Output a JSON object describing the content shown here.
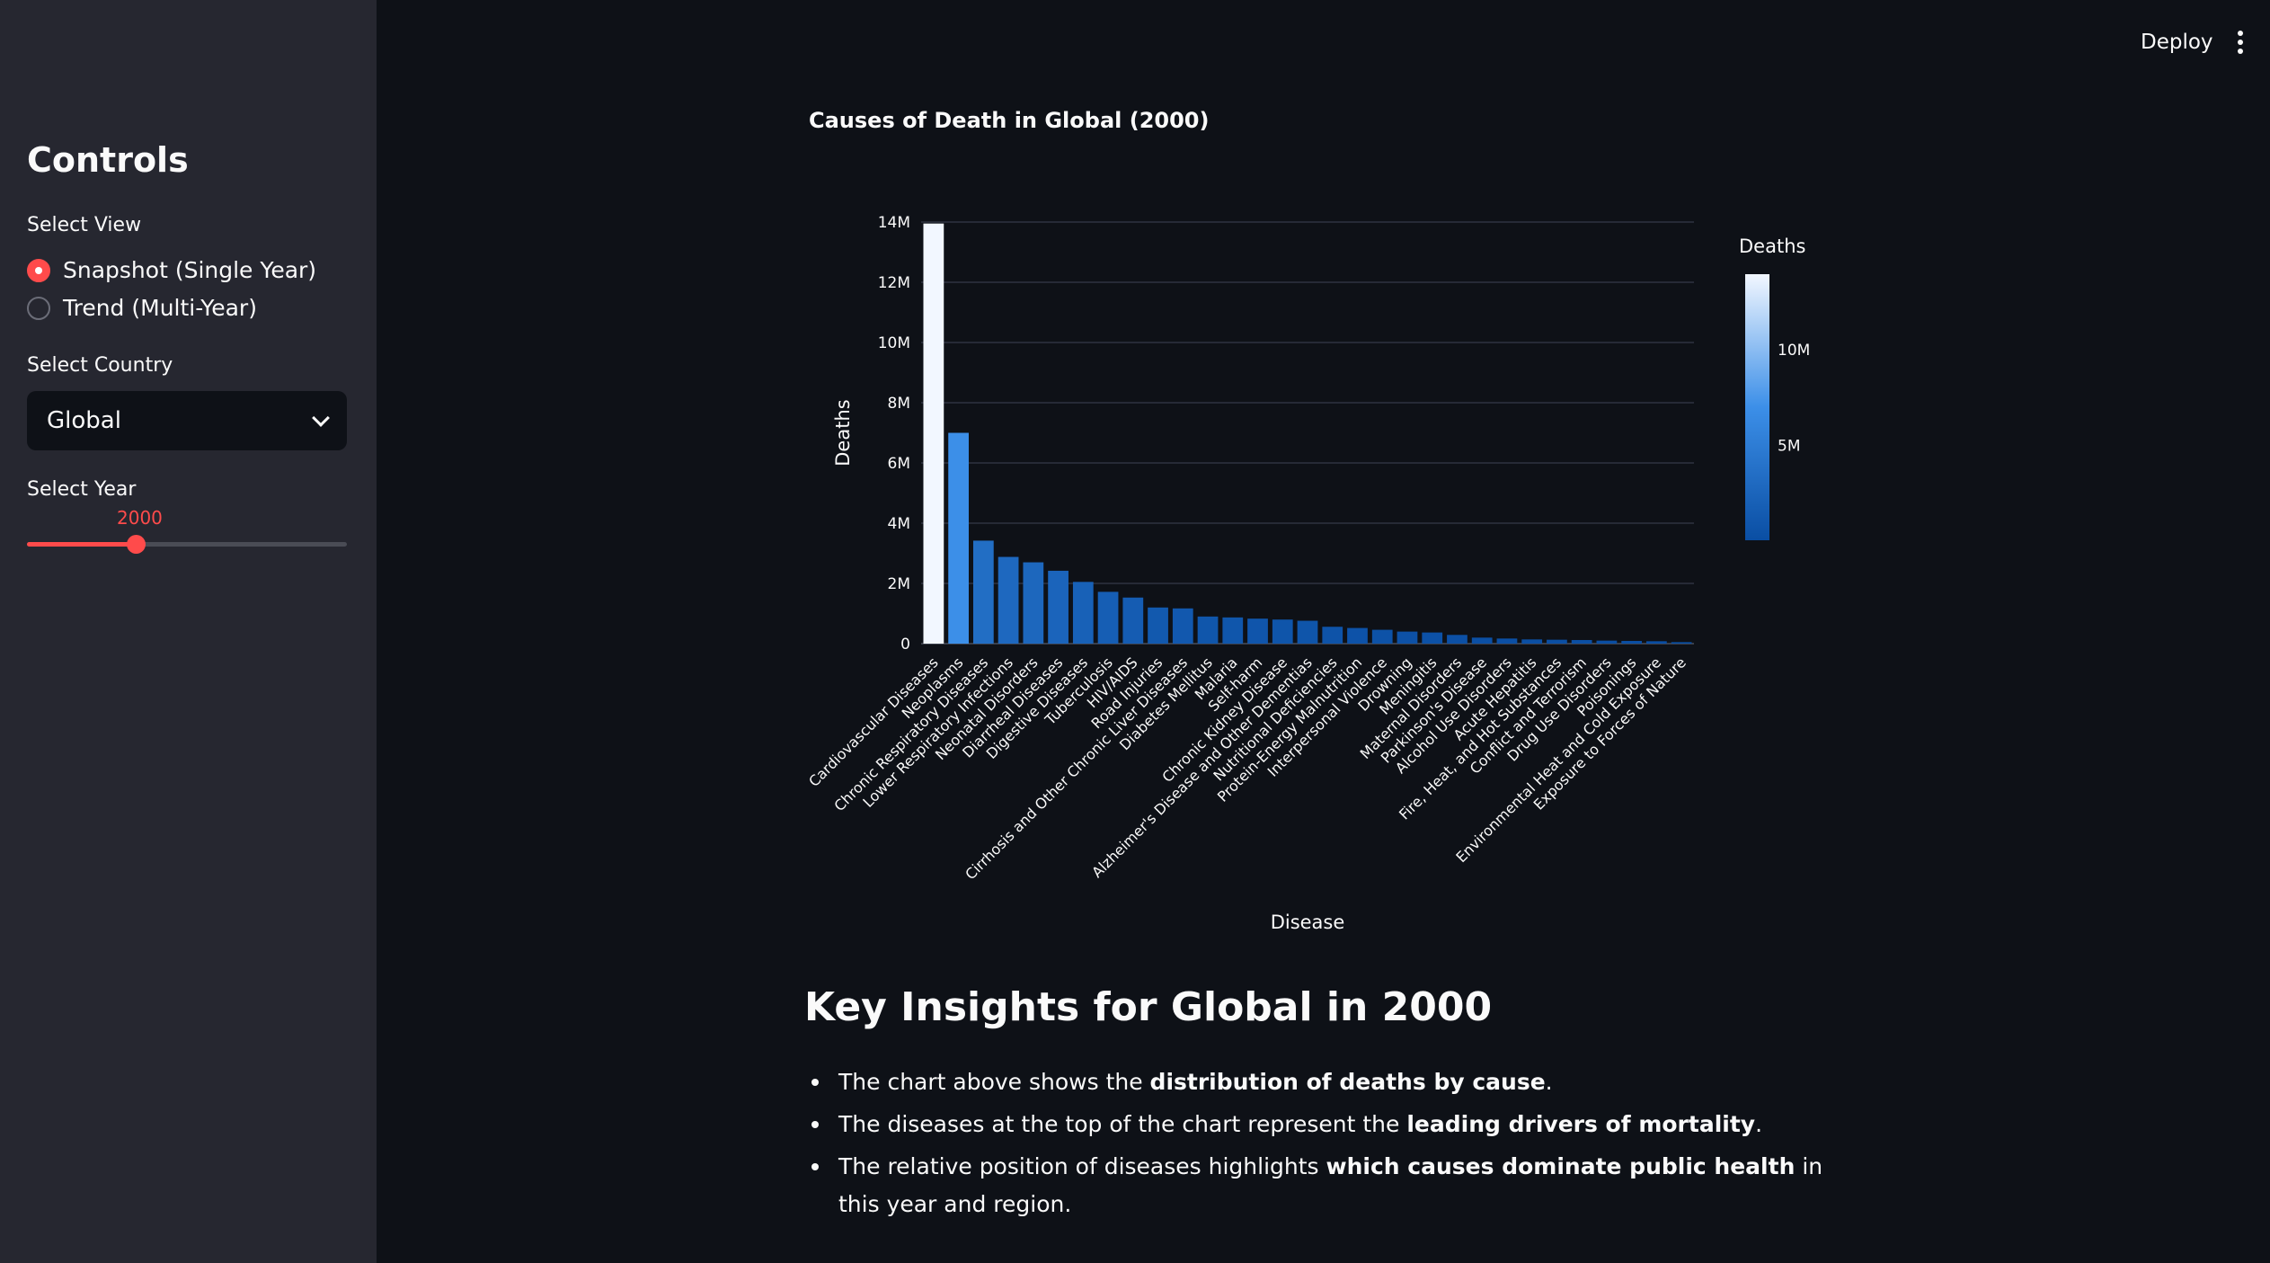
{
  "header": {
    "deploy_label": "Deploy"
  },
  "sidebar": {
    "title": "Controls",
    "view_label": "Select View",
    "view_options": [
      "Snapshot (Single Year)",
      "Trend (Multi-Year)"
    ],
    "view_selected": 0,
    "country_label": "Select Country",
    "country_value": "Global",
    "year_label": "Select Year",
    "year_value": "2000",
    "year_slider_fraction": 0.34,
    "accent_color": "#ff4b4b"
  },
  "chart_data": {
    "type": "bar",
    "title": "Causes of Death in Global (2000)",
    "xlabel": "Disease",
    "ylabel": "Deaths",
    "ylim": [
      0,
      14000000
    ],
    "yticks": [
      0,
      2000000,
      4000000,
      6000000,
      8000000,
      10000000,
      12000000,
      14000000
    ],
    "ytick_labels": [
      "0",
      "2M",
      "4M",
      "6M",
      "8M",
      "10M",
      "12M",
      "14M"
    ],
    "categories": [
      "Cardiovascular Diseases",
      "Neoplasms",
      "Chronic Respiratory Diseases",
      "Lower Respiratory Infections",
      "Neonatal Disorders",
      "Diarrheal Diseases",
      "Digestive Diseases",
      "Tuberculosis",
      "HIV/AIDS",
      "Road Injuries",
      "Cirrhosis and Other Chronic Liver Diseases",
      "Diabetes Mellitus",
      "Malaria",
      "Self-harm",
      "Chronic Kidney Disease",
      "Alzheimer's Disease and Other Dementias",
      "Nutritional Deficiencies",
      "Protein-Energy Malnutrition",
      "Interpersonal Violence",
      "Drowning",
      "Meningitis",
      "Maternal Disorders",
      "Parkinson's Disease",
      "Alcohol Use Disorders",
      "Acute Hepatitis",
      "Fire, Heat, and Hot Substances",
      "Conflict and Terrorism",
      "Drug Use Disorders",
      "Poisonings",
      "Environmental Heat and Cold Exposure",
      "Exposure to Forces of Nature"
    ],
    "values": [
      13950000,
      7000000,
      3420000,
      2880000,
      2700000,
      2420000,
      2050000,
      1720000,
      1530000,
      1200000,
      1170000,
      900000,
      870000,
      830000,
      800000,
      760000,
      560000,
      520000,
      460000,
      400000,
      370000,
      290000,
      200000,
      170000,
      140000,
      130000,
      120000,
      100000,
      90000,
      80000,
      50000
    ],
    "colorbar": {
      "title": "Deaths",
      "tick_labels": [
        "5M",
        "10M"
      ],
      "ticks": [
        5000000,
        10000000
      ],
      "range": [
        50000,
        13950000
      ],
      "color_low": "#0a4ea3",
      "color_mid": "#3c8fe8",
      "color_high": "#f2f7ff"
    },
    "grid": true
  },
  "insights": {
    "title": "Key Insights for Global in 2000",
    "items": [
      {
        "pre": "The chart above shows the ",
        "bold": "distribution of deaths by cause",
        "post": "."
      },
      {
        "pre": "The diseases at the top of the chart represent the ",
        "bold": "leading drivers of mortality",
        "post": "."
      },
      {
        "pre": "The relative position of diseases highlights ",
        "bold": "which causes dominate public health",
        "post": " in this year and region."
      }
    ]
  }
}
